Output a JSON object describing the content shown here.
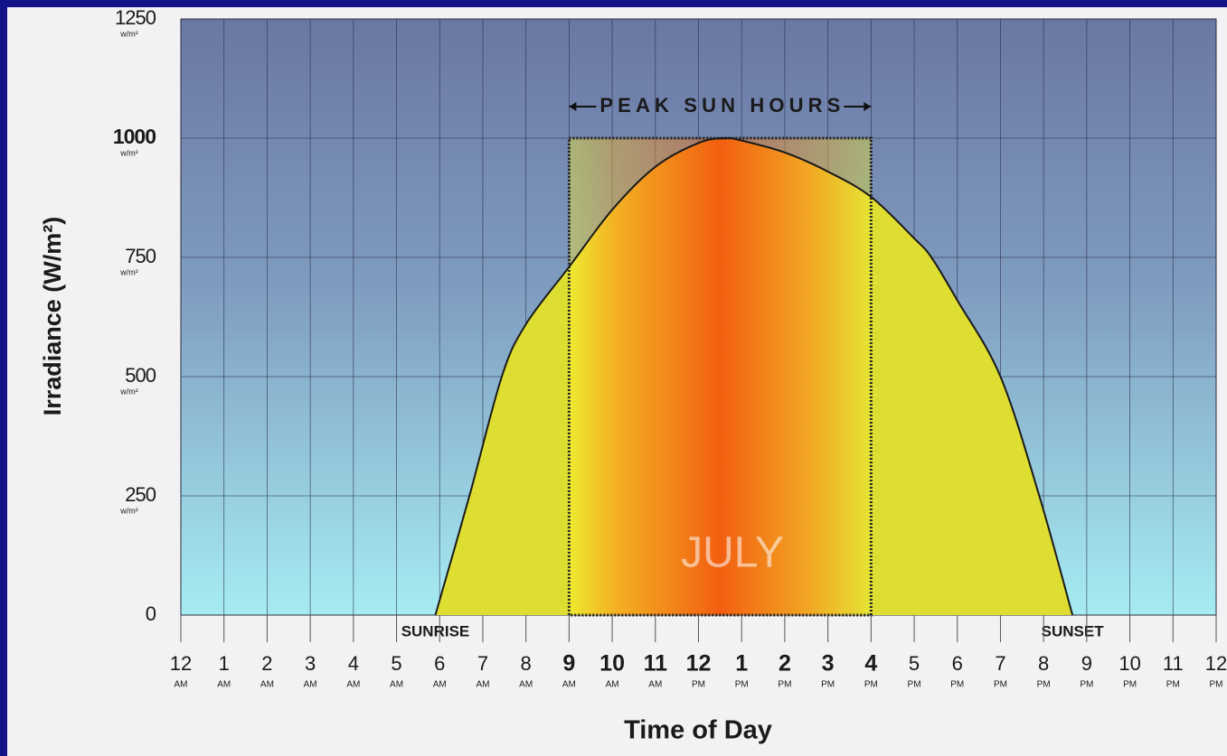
{
  "chart_data": {
    "type": "area",
    "xlabel": "Time of Day",
    "ylabel": "Irradiance (W/m²)",
    "xlim": [
      0,
      24
    ],
    "ylim": [
      0,
      1250
    ],
    "yticks": [
      0,
      250,
      500,
      750,
      1000,
      1250
    ],
    "ytick_units": [
      null,
      "w/m²",
      "w/m²",
      "w/m²",
      "w/m²",
      "w/m²"
    ],
    "xticks": [
      {
        "value": 0,
        "label": "12"
      },
      {
        "value": 1,
        "label": "1"
      },
      {
        "value": 2,
        "label": "2"
      },
      {
        "value": 3,
        "label": "3"
      },
      {
        "value": 4,
        "label": "4"
      },
      {
        "value": 5,
        "label": "5"
      },
      {
        "value": 6,
        "label": "6"
      },
      {
        "value": 7,
        "label": "7"
      },
      {
        "value": 8,
        "label": "8"
      },
      {
        "value": 9,
        "label": "9"
      },
      {
        "value": 10,
        "label": "10"
      },
      {
        "value": 11,
        "label": "11"
      },
      {
        "value": 12,
        "label": "12"
      },
      {
        "value": 13,
        "label": "1"
      },
      {
        "value": 14,
        "label": "2"
      },
      {
        "value": 15,
        "label": "3"
      },
      {
        "value": 16,
        "label": "4"
      },
      {
        "value": 17,
        "label": "5"
      },
      {
        "value": 18,
        "label": "6"
      },
      {
        "value": 19,
        "label": "7"
      },
      {
        "value": 20,
        "label": "8"
      },
      {
        "value": 21,
        "label": "9"
      },
      {
        "value": 22,
        "label": "10"
      },
      {
        "value": 23,
        "label": "11"
      },
      {
        "value": 24,
        "label": "12"
      }
    ],
    "xtick_periods": [
      "AM",
      "AM",
      "AM",
      "AM",
      "AM",
      "AM",
      "AM",
      "AM",
      "AM",
      "AM",
      "AM",
      "AM",
      "PM",
      "PM",
      "PM",
      "PM",
      "PM",
      "PM",
      "PM",
      "PM",
      "PM",
      "PM",
      "PM",
      "PM",
      "PM"
    ],
    "x": [
      5.9,
      6.69,
      7.44,
      8,
      9,
      10,
      11,
      12,
      12.6,
      13,
      14,
      15,
      16,
      17,
      17.4,
      18,
      19,
      19.9,
      20.67
    ],
    "values": [
      0,
      250,
      500,
      610,
      730,
      850,
      940,
      990,
      1000,
      995,
      970,
      930,
      877,
      790,
      750,
      660,
      500,
      250,
      0
    ],
    "color": "#dede32",
    "grid": true,
    "peak": {
      "label": "PEAK SUN HOURS",
      "x": [
        9,
        16
      ],
      "value": 1000
    },
    "annotations": [
      {
        "text": "SUNRISE",
        "x": 5.9
      },
      {
        "text": "SUNSET",
        "x": 20.67
      }
    ],
    "watermark": "JULY"
  }
}
